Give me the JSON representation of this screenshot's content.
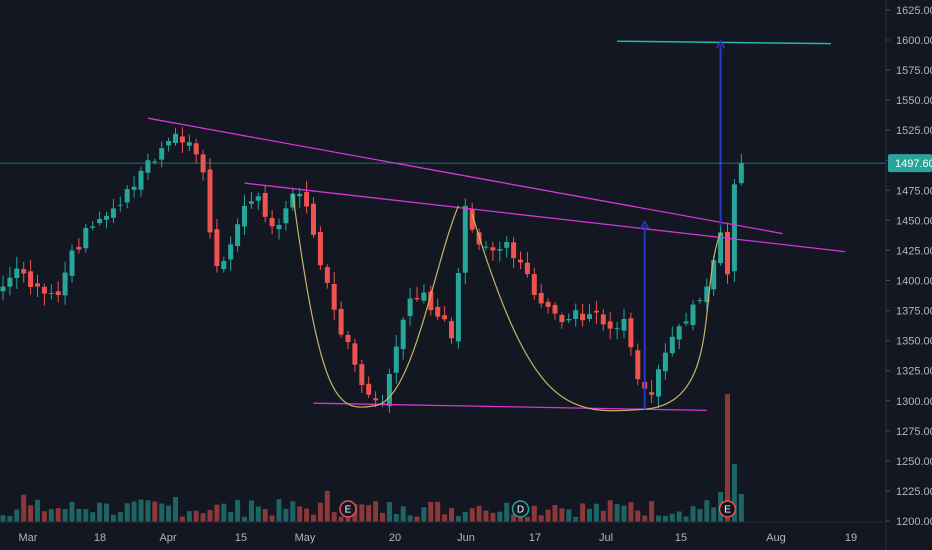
{
  "chart_data": {
    "type": "candlestick",
    "x_ticks": [
      "Mar",
      "18",
      "Apr",
      "15",
      "May",
      "20",
      "Jun",
      "17",
      "Jul",
      "15",
      "Aug",
      "19"
    ],
    "y_ticks": [
      "1625.00",
      "1600.00",
      "1575.00",
      "1550.00",
      "1525.00",
      "1500.00",
      "1475.00",
      "1450.00",
      "1425.00",
      "1400.00",
      "1375.00",
      "1350.00",
      "1325.00",
      "1300.00",
      "1275.00",
      "1250.00",
      "1225.00",
      "1200.00"
    ],
    "ylim": [
      1200,
      1630
    ],
    "grid": false,
    "last_price": "1497.60",
    "last_price_value": 1497.6,
    "colors": {
      "background": "#131722",
      "up": "#26a69a",
      "down": "#ef5350",
      "trendline": "#d336d3",
      "cup_curve": "#c8b464",
      "arrow": "#2a36c8",
      "target_line": "#26b5b0",
      "price_line": "#26a69a"
    },
    "event_markers": [
      {
        "label": "E",
        "type": "earnings",
        "day": 50
      },
      {
        "label": "D",
        "type": "dividend",
        "day": 75
      },
      {
        "label": "E",
        "type": "earnings",
        "day": 105
      }
    ],
    "anchors": [
      {
        "day": 0,
        "price": 1395
      },
      {
        "day": 2,
        "price": 1410
      },
      {
        "day": 5,
        "price": 1395
      },
      {
        "day": 8,
        "price": 1388
      },
      {
        "day": 10,
        "price": 1425
      },
      {
        "day": 13,
        "price": 1445
      },
      {
        "day": 16,
        "price": 1460
      },
      {
        "day": 19,
        "price": 1478
      },
      {
        "day": 21,
        "price": 1500
      },
      {
        "day": 23,
        "price": 1510
      },
      {
        "day": 25,
        "price": 1522
      },
      {
        "day": 27,
        "price": 1515
      },
      {
        "day": 29,
        "price": 1490
      },
      {
        "day": 30,
        "price": 1440
      },
      {
        "day": 31,
        "price": 1412
      },
      {
        "day": 33,
        "price": 1430
      },
      {
        "day": 35,
        "price": 1462
      },
      {
        "day": 37,
        "price": 1470
      },
      {
        "day": 39,
        "price": 1445
      },
      {
        "day": 41,
        "price": 1460
      },
      {
        "day": 43,
        "price": 1472
      },
      {
        "day": 45,
        "price": 1438
      },
      {
        "day": 47,
        "price": 1398
      },
      {
        "day": 49,
        "price": 1355
      },
      {
        "day": 51,
        "price": 1330
      },
      {
        "day": 53,
        "price": 1305
      },
      {
        "day": 55,
        "price": 1298
      },
      {
        "day": 57,
        "price": 1345
      },
      {
        "day": 59,
        "price": 1385
      },
      {
        "day": 61,
        "price": 1390
      },
      {
        "day": 63,
        "price": 1370
      },
      {
        "day": 65,
        "price": 1352
      },
      {
        "day": 67,
        "price": 1462
      },
      {
        "day": 69,
        "price": 1430
      },
      {
        "day": 71,
        "price": 1425
      },
      {
        "day": 73,
        "price": 1432
      },
      {
        "day": 75,
        "price": 1415
      },
      {
        "day": 77,
        "price": 1388
      },
      {
        "day": 79,
        "price": 1378
      },
      {
        "day": 82,
        "price": 1368
      },
      {
        "day": 85,
        "price": 1372
      },
      {
        "day": 88,
        "price": 1360
      },
      {
        "day": 90,
        "price": 1368
      },
      {
        "day": 92,
        "price": 1318
      },
      {
        "day": 94,
        "price": 1305
      },
      {
        "day": 96,
        "price": 1340
      },
      {
        "day": 98,
        "price": 1362
      },
      {
        "day": 100,
        "price": 1380
      },
      {
        "day": 102,
        "price": 1395
      },
      {
        "day": 104,
        "price": 1440
      },
      {
        "day": 105,
        "price": 1405
      },
      {
        "day": 106,
        "price": 1480
      },
      {
        "day": 107,
        "price": 1497.6
      }
    ],
    "annotations": {
      "upper_trendline": [
        {
          "day": 21,
          "price": 1535
        },
        {
          "day": 113,
          "price": 1439
        }
      ],
      "neckline": [
        {
          "day": 35,
          "price": 1481
        },
        {
          "day": 122,
          "price": 1424
        }
      ],
      "bottom_line": [
        {
          "day": 45,
          "price": 1298
        },
        {
          "day": 102,
          "price": 1292
        }
      ],
      "target_line": [
        {
          "day": 89,
          "price": 1599
        },
        {
          "day": 120,
          "price": 1597
        }
      ],
      "cup_1": {
        "left": {
          "day": 42,
          "price": 1472
        },
        "bottom": {
          "day": 54,
          "price": 1296
        },
        "right": {
          "day": 66,
          "price": 1462
        }
      },
      "cup_2": {
        "left": {
          "day": 68,
          "price": 1455
        },
        "bottom": {
          "day": 93,
          "price": 1293
        },
        "right": {
          "day": 104,
          "price": 1440
        }
      },
      "arrow_1": {
        "day": 93,
        "from": 1293,
        "to": 1449
      },
      "arrow_2": {
        "day": 104,
        "from": 1445,
        "to": 1599
      }
    }
  }
}
